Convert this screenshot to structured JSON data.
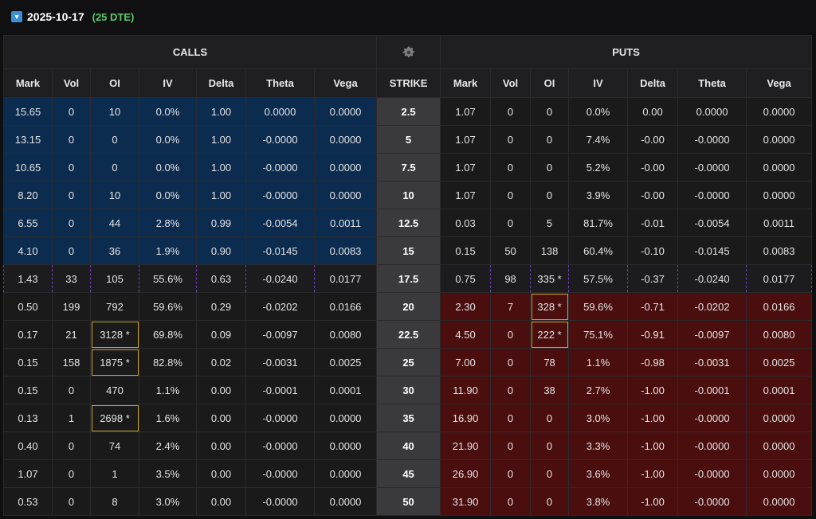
{
  "header": {
    "expiry_date": "2025-10-17",
    "dte_label": "(25 DTE)"
  },
  "groups": {
    "calls": "CALLS",
    "puts": "PUTS"
  },
  "columns": {
    "calls": [
      "Mark",
      "Vol",
      "OI",
      "IV",
      "Delta",
      "Theta",
      "Vega"
    ],
    "strike": "STRIKE",
    "puts": [
      "Mark",
      "Vol",
      "OI",
      "IV",
      "Delta",
      "Theta",
      "Vega"
    ]
  },
  "icons": {
    "expander": "chevron-down-icon",
    "settings": "gear-icon"
  },
  "colors": {
    "itm_call_bg": "#0c2c4f",
    "itm_put_bg": "#4a0e0e",
    "atm_border": "#6b3fc4",
    "dte_green": "#59c96b",
    "highlight_border": "#c9a227"
  },
  "rows": [
    {
      "strike": "2.5",
      "call": [
        "15.65",
        "0",
        "10",
        "0.0%",
        "1.00",
        "0.0000",
        "0.0000"
      ],
      "put": [
        "1.07",
        "0",
        "0",
        "0.0%",
        "0.00",
        "0.0000",
        "0.0000"
      ]
    },
    {
      "strike": "5",
      "call": [
        "13.15",
        "0",
        "0",
        "0.0%",
        "1.00",
        "-0.0000",
        "0.0000"
      ],
      "put": [
        "1.07",
        "0",
        "0",
        "7.4%",
        "-0.00",
        "-0.0000",
        "0.0000"
      ]
    },
    {
      "strike": "7.5",
      "call": [
        "10.65",
        "0",
        "0",
        "0.0%",
        "1.00",
        "-0.0000",
        "0.0000"
      ],
      "put": [
        "1.07",
        "0",
        "0",
        "5.2%",
        "-0.00",
        "-0.0000",
        "0.0000"
      ]
    },
    {
      "strike": "10",
      "call": [
        "8.20",
        "0",
        "10",
        "0.0%",
        "1.00",
        "-0.0000",
        "0.0000"
      ],
      "put": [
        "1.07",
        "0",
        "0",
        "3.9%",
        "-0.00",
        "-0.0000",
        "0.0000"
      ]
    },
    {
      "strike": "12.5",
      "call": [
        "6.55",
        "0",
        "44",
        "2.8%",
        "0.99",
        "-0.0054",
        "0.0011"
      ],
      "put": [
        "0.03",
        "0",
        "5",
        "81.7%",
        "-0.01",
        "-0.0054",
        "0.0011"
      ]
    },
    {
      "strike": "15",
      "call": [
        "4.10",
        "0",
        "36",
        "1.9%",
        "0.90",
        "-0.0145",
        "0.0083"
      ],
      "put": [
        "0.15",
        "50",
        "138",
        "60.4%",
        "-0.10",
        "-0.0145",
        "0.0083"
      ]
    },
    {
      "strike": "17.5",
      "call": [
        "1.43",
        "33",
        "105",
        "55.6%",
        "0.63",
        "-0.0240",
        "0.0177"
      ],
      "put": [
        "0.75",
        "98",
        "335 *",
        "57.5%",
        "-0.37",
        "-0.0240",
        "0.0177"
      ]
    },
    {
      "strike": "20",
      "call": [
        "0.50",
        "199",
        "792",
        "59.6%",
        "0.29",
        "-0.0202",
        "0.0166"
      ],
      "put": [
        "2.30",
        "7",
        "328 *",
        "59.6%",
        "-0.71",
        "-0.0202",
        "0.0166"
      ]
    },
    {
      "strike": "22.5",
      "call": [
        "0.17",
        "21",
        "3128 *",
        "69.8%",
        "0.09",
        "-0.0097",
        "0.0080"
      ],
      "put": [
        "4.50",
        "0",
        "222 *",
        "75.1%",
        "-0.91",
        "-0.0097",
        "0.0080"
      ]
    },
    {
      "strike": "25",
      "call": [
        "0.15",
        "158",
        "1875 *",
        "82.8%",
        "0.02",
        "-0.0031",
        "0.0025"
      ],
      "put": [
        "7.00",
        "0",
        "78",
        "1.1%",
        "-0.98",
        "-0.0031",
        "0.0025"
      ]
    },
    {
      "strike": "30",
      "call": [
        "0.15",
        "0",
        "470",
        "1.1%",
        "0.00",
        "-0.0001",
        "0.0001"
      ],
      "put": [
        "11.90",
        "0",
        "38",
        "2.7%",
        "-1.00",
        "-0.0001",
        "0.0001"
      ]
    },
    {
      "strike": "35",
      "call": [
        "0.13",
        "1",
        "2698 *",
        "1.6%",
        "0.00",
        "-0.0000",
        "0.0000"
      ],
      "put": [
        "16.90",
        "0",
        "0",
        "3.0%",
        "-1.00",
        "-0.0000",
        "0.0000"
      ]
    },
    {
      "strike": "40",
      "call": [
        "0.40",
        "0",
        "74",
        "2.4%",
        "0.00",
        "-0.0000",
        "0.0000"
      ],
      "put": [
        "21.90",
        "0",
        "0",
        "3.3%",
        "-1.00",
        "-0.0000",
        "0.0000"
      ]
    },
    {
      "strike": "45",
      "call": [
        "1.07",
        "0",
        "1",
        "3.5%",
        "0.00",
        "-0.0000",
        "0.0000"
      ],
      "put": [
        "26.90",
        "0",
        "0",
        "3.6%",
        "-1.00",
        "-0.0000",
        "0.0000"
      ]
    },
    {
      "strike": "50",
      "call": [
        "0.53",
        "0",
        "8",
        "3.0%",
        "0.00",
        "-0.0000",
        "0.0000"
      ],
      "put": [
        "31.90",
        "0",
        "0",
        "3.8%",
        "-1.00",
        "-0.0000",
        "0.0000"
      ]
    }
  ]
}
